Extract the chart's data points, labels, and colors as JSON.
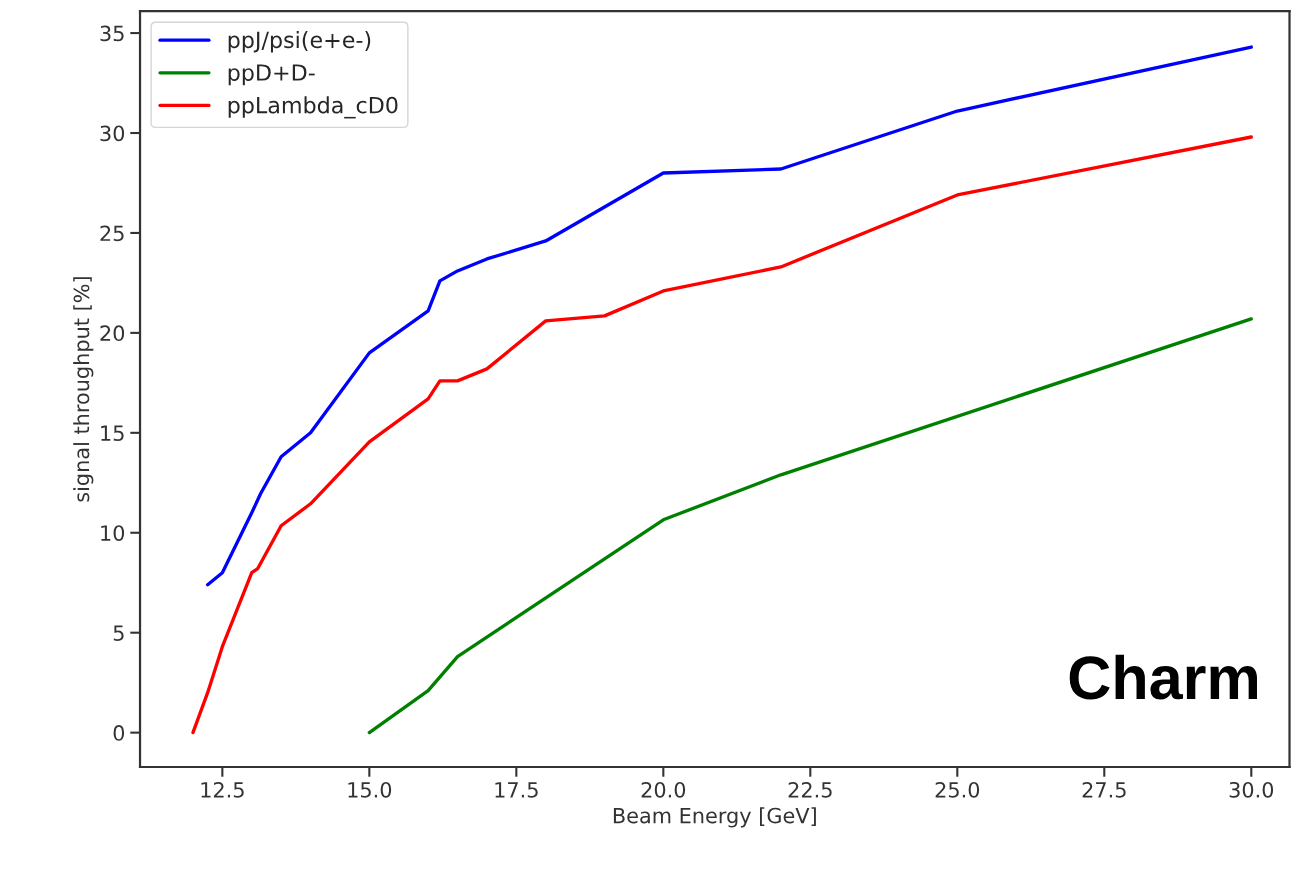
{
  "chart_data": {
    "type": "line",
    "xlabel": "Beam Energy [GeV]",
    "ylabel": "signal throughput [%]",
    "xlim": [
      11.1,
      30.65
    ],
    "xticks": [
      {
        "value": 12.5,
        "label": "12.5"
      },
      {
        "value": 15,
        "label": "15.0"
      },
      {
        "value": 17.5,
        "label": "17.5"
      },
      {
        "value": 20,
        "label": "20.0"
      },
      {
        "value": 22.5,
        "label": "22.5"
      },
      {
        "value": 25,
        "label": "25.0"
      },
      {
        "value": 27.5,
        "label": "27.5"
      },
      {
        "value": 30,
        "label": "30.0"
      }
    ],
    "ylim": [
      -1.72,
      36.1
    ],
    "yticks": [
      0,
      5,
      10,
      15,
      20,
      25,
      30,
      35
    ],
    "grid": false,
    "legend": "top left",
    "line_style": "solid",
    "marker": "none",
    "annotations": [
      "Charm"
    ],
    "series": [
      {
        "name": "ppJ/psi(e+e-)",
        "color": "#0000ff",
        "x": [
          12.25,
          12.5,
          13,
          13.15,
          13.5,
          14,
          15,
          16,
          16.2,
          16.5,
          17,
          18,
          19,
          20,
          22,
          25,
          30
        ],
        "values": [
          7.4,
          8.0,
          11.0,
          11.95,
          13.8,
          15.0,
          19.0,
          21.1,
          22.6,
          23.1,
          23.7,
          24.6,
          26.3,
          28.0,
          28.2,
          31.1,
          34.3
        ]
      },
      {
        "name": "ppD+D-",
        "color": "#008000",
        "x": [
          15,
          16,
          16.5,
          20,
          22,
          30
        ],
        "values": [
          0,
          2.1,
          3.8,
          10.65,
          12.9,
          20.7
        ]
      },
      {
        "name": "ppLambda_cD0",
        "color": "#ff0000",
        "x": [
          12,
          12.25,
          12.5,
          13,
          13.1,
          13.5,
          14,
          15,
          16,
          16.2,
          16.5,
          17,
          18,
          19,
          20,
          22,
          25,
          30
        ],
        "values": [
          0,
          2.0,
          4.3,
          8.0,
          8.2,
          10.35,
          11.45,
          14.55,
          16.7,
          17.6,
          17.6,
          18.2,
          20.6,
          20.85,
          22.1,
          23.3,
          26.9,
          29.8
        ]
      }
    ]
  }
}
